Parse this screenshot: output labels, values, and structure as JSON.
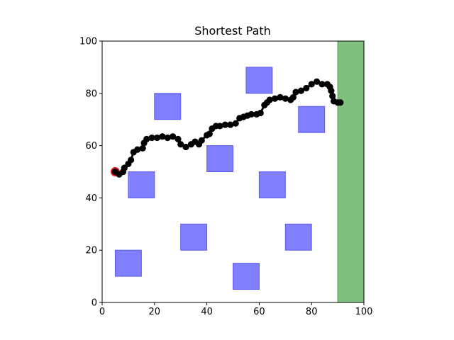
{
  "chart_data": {
    "type": "scatter",
    "title": "Shortest Path",
    "xlabel": "",
    "ylabel": "",
    "xlim": [
      0,
      100
    ],
    "ylim": [
      0,
      100
    ],
    "grid": false,
    "x_ticks": [
      0,
      20,
      40,
      60,
      80,
      100
    ],
    "y_ticks": [
      0,
      20,
      40,
      60,
      80,
      100
    ],
    "goal_region": {
      "x": [
        90,
        100
      ],
      "y": [
        0,
        100
      ],
      "color": "#7fc07f"
    },
    "obstacles": [
      {
        "x": 5,
        "y": 10,
        "w": 10,
        "h": 10
      },
      {
        "x": 10,
        "y": 40,
        "w": 10,
        "h": 10
      },
      {
        "x": 20,
        "y": 70,
        "w": 10,
        "h": 10
      },
      {
        "x": 30,
        "y": 20,
        "w": 10,
        "h": 10
      },
      {
        "x": 40,
        "y": 50,
        "w": 10,
        "h": 10
      },
      {
        "x": 50,
        "y": 5,
        "w": 10,
        "h": 10
      },
      {
        "x": 55,
        "y": 80,
        "w": 10,
        "h": 10
      },
      {
        "x": 60,
        "y": 40,
        "w": 10,
        "h": 10
      },
      {
        "x": 70,
        "y": 20,
        "w": 10,
        "h": 10
      },
      {
        "x": 75,
        "y": 65,
        "w": 10,
        "h": 10
      }
    ],
    "obstacle_color": "#7f7fff",
    "obstacle_edge": "#5a5af0",
    "start": {
      "x": 5,
      "y": 50,
      "color": "#e8141e"
    },
    "path_color": "#000000",
    "path": [
      [
        5,
        50
      ],
      [
        6.5,
        49
      ],
      [
        8,
        50
      ],
      [
        8.5,
        51.5
      ],
      [
        10,
        53
      ],
      [
        11,
        54.5
      ],
      [
        12,
        57.5
      ],
      [
        13.5,
        58.5
      ],
      [
        15.5,
        59
      ],
      [
        16,
        61
      ],
      [
        17,
        62.5
      ],
      [
        19,
        63
      ],
      [
        21,
        63
      ],
      [
        23,
        63.5
      ],
      [
        25,
        63
      ],
      [
        27,
        63.5
      ],
      [
        29,
        62.5
      ],
      [
        30,
        60.5
      ],
      [
        32,
        59.5
      ],
      [
        34,
        60.5
      ],
      [
        35.5,
        61.5
      ],
      [
        37,
        60.5
      ],
      [
        38,
        62
      ],
      [
        40,
        64
      ],
      [
        41,
        64.5
      ],
      [
        42,
        66.5
      ],
      [
        43.5,
        67.5
      ],
      [
        45,
        67.5
      ],
      [
        47,
        68
      ],
      [
        49,
        68
      ],
      [
        51,
        68.5
      ],
      [
        52.5,
        70.5
      ],
      [
        54,
        71
      ],
      [
        55.5,
        71.5
      ],
      [
        57,
        72
      ],
      [
        59,
        72
      ],
      [
        60.5,
        72.5
      ],
      [
        62,
        75.5
      ],
      [
        63,
        76.5
      ],
      [
        64,
        77.5
      ],
      [
        66,
        78
      ],
      [
        68,
        78.5
      ],
      [
        70,
        78
      ],
      [
        72,
        77.5
      ],
      [
        73,
        78.5
      ],
      [
        74,
        80.5
      ],
      [
        76,
        81
      ],
      [
        78,
        82
      ],
      [
        80,
        83.5
      ],
      [
        82,
        84.5
      ],
      [
        84,
        83.5
      ],
      [
        86,
        83.5
      ],
      [
        87,
        82.5
      ],
      [
        87.5,
        81
      ],
      [
        88,
        79
      ],
      [
        88.5,
        77
      ],
      [
        90,
        76.5
      ],
      [
        91,
        76.5
      ]
    ]
  }
}
